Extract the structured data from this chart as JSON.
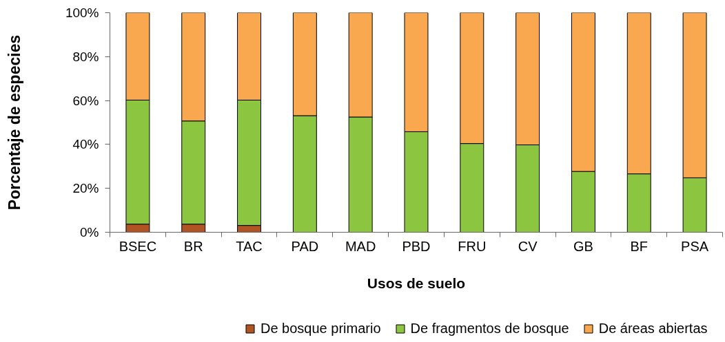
{
  "chart_data": {
    "type": "bar",
    "stacked": true,
    "xlabel": "Usos de suelo",
    "ylabel": "Porcentaje de especies",
    "legend": "bottom",
    "categories": [
      "BSEC",
      "BR",
      "TAC",
      "PAD",
      "MAD",
      "PBD",
      "FRU",
      "CV",
      "GB",
      "BF",
      "PSA"
    ],
    "ylim": [
      0,
      100
    ],
    "yticks": [
      {
        "value": 0,
        "label": "0%"
      },
      {
        "value": 20,
        "label": "20%"
      },
      {
        "value": 40,
        "label": "40%"
      },
      {
        "value": 60,
        "label": "60%"
      },
      {
        "value": 80,
        "label": "80%"
      },
      {
        "value": 100,
        "label": "100%"
      }
    ],
    "series": [
      {
        "name": "De bosque primario",
        "color": "#b05424",
        "values": [
          3.7,
          3.7,
          3.1,
          0,
          0,
          0,
          0,
          0,
          0,
          0,
          0
        ]
      },
      {
        "name": "De fragmentos de bosque",
        "color": "#8cc540",
        "values": [
          56.5,
          47.0,
          57.1,
          53.1,
          52.5,
          45.8,
          40.4,
          39.8,
          27.7,
          26.6,
          24.8
        ]
      },
      {
        "name": "De áreas abiertas",
        "color": "#f9a84f",
        "values": [
          39.8,
          49.3,
          39.8,
          46.9,
          47.5,
          54.2,
          59.6,
          60.2,
          72.3,
          73.4,
          75.2
        ]
      }
    ]
  }
}
